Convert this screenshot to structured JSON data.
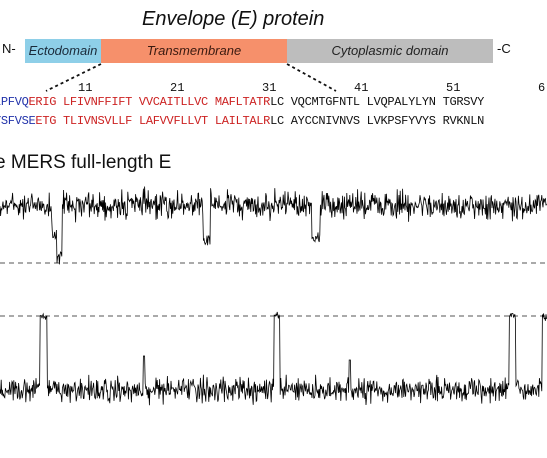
{
  "title": "Envelope (E) protein",
  "termini": {
    "n": "N-",
    "c": "-C"
  },
  "domains": [
    {
      "label": "Ectodomain",
      "color": "#8ecfe8"
    },
    {
      "label": "Transmembrane",
      "color": "#f6906b"
    },
    {
      "label": "Cytoplasmic domain",
      "color": "#bdbdbd"
    }
  ],
  "ruler": [
    "11",
    "21",
    "31",
    "41",
    "51",
    "6"
  ],
  "sequences": [
    {
      "blue": "LPFVQ",
      "red": "ERIG LFIVNFFIFT VVCAITLLVC MAFLTATR",
      "black": "LC VQCMTGFNTL LVQPALYLYN TGRSVY"
    },
    {
      "blue": "YSFVSE",
      "red": "ETG TLIVNSVLLF LAFVVFLLVT LAILTALR",
      "black": "LC AYCCNIVNVS LVKPSFYVYS RVKNLN"
    }
  ],
  "trace_label": "e MERS full-length E"
}
